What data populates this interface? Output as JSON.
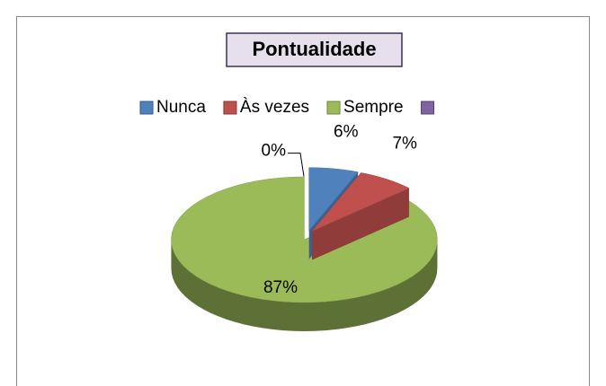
{
  "chart_data": {
    "type": "pie",
    "title": "Pontualidade",
    "categories": [
      "Nunca",
      "Às vezes",
      "Sempre",
      null
    ],
    "values": [
      6,
      7,
      87,
      0
    ],
    "value_labels": [
      "6%",
      "7%",
      "87%",
      "0%"
    ],
    "colors": [
      "#4f81bd",
      "#c0504d",
      "#9bbb59",
      "#8064a2"
    ],
    "legend": "top"
  }
}
